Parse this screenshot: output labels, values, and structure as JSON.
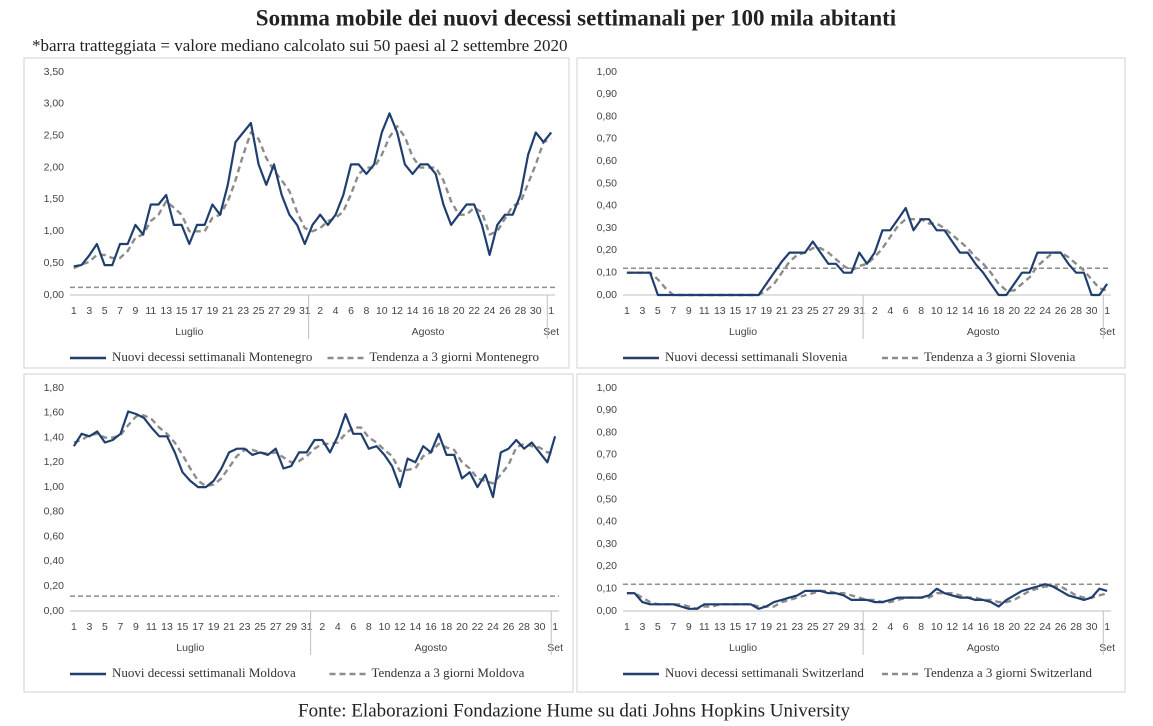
{
  "title": "Somma mobile dei nuovi decessi settimanali per 100 mila abitanti",
  "subtitle": "*barra tratteggiata = valore mediano calcolato sui 50 paesi al 2 settembre 2020",
  "source": "Fonte: Elaborazioni Fondazione Hume su dati Johns Hopkins University",
  "x_axis": {
    "groups": [
      {
        "label": "Luglio",
        "categories": [
          "1",
          null,
          "3",
          null,
          "5",
          null,
          "7",
          null,
          "9",
          null,
          "11",
          null,
          "13",
          null,
          "15",
          null,
          "17",
          null,
          "19",
          null,
          "21",
          null,
          "23",
          null,
          "25",
          null,
          "27",
          null,
          "29",
          null,
          "31"
        ]
      },
      {
        "label": "Agosto",
        "categories": [
          null,
          "2",
          null,
          "4",
          null,
          "6",
          null,
          "8",
          null,
          "10",
          null,
          "12",
          null,
          "14",
          null,
          "16",
          null,
          "18",
          null,
          "20",
          null,
          "22",
          null,
          "24",
          null,
          "26",
          null,
          "28",
          null,
          "30",
          null
        ]
      },
      {
        "label": "Set",
        "categories": [
          "1"
        ]
      }
    ]
  },
  "chart_data": [
    {
      "type": "line",
      "ylim": [
        0,
        3.5
      ],
      "yticks": [
        {
          "value": 0,
          "label": "0,00"
        },
        {
          "value": 0.5,
          "label": "0,50"
        },
        {
          "value": 1,
          "label": "1,00"
        },
        {
          "value": 1.5,
          "label": "1,50"
        },
        {
          "value": 2,
          "label": "2,00"
        },
        {
          "value": 2.5,
          "label": "2,50"
        },
        {
          "value": 3,
          "label": "3,00"
        },
        {
          "value": 3.5,
          "label": "3,50"
        }
      ],
      "reference_line": {
        "value": 0.12,
        "color": "#8c8c8c"
      },
      "series": [
        {
          "name": "Nuovi decessi settimanali Montenegro",
          "color": "#203f6e",
          "style": "solid",
          "values": [
            0.45,
            0.47,
            0.62,
            0.8,
            0.47,
            0.47,
            0.8,
            0.8,
            1.1,
            0.95,
            1.42,
            1.42,
            1.57,
            1.1,
            1.1,
            0.8,
            1.1,
            1.1,
            1.42,
            1.26,
            1.73,
            2.4,
            2.55,
            2.7,
            2.05,
            1.73,
            2.05,
            1.57,
            1.26,
            1.1,
            0.8,
            1.1,
            1.26,
            1.1,
            1.26,
            1.57,
            2.05,
            2.05,
            1.9,
            2.05,
            2.55,
            2.85,
            2.55,
            2.05,
            1.9,
            2.05,
            2.05,
            1.9,
            1.42,
            1.1,
            1.26,
            1.42,
            1.42,
            1.1,
            0.63,
            1.1,
            1.26,
            1.26,
            1.57,
            2.2,
            2.55,
            2.4,
            2.55
          ]
        },
        {
          "name": "Tendenza a 3 giorni Montenegro",
          "color": "#8c8c8c",
          "style": "dashed",
          "values": [
            0.42,
            0.48,
            0.52,
            0.63,
            0.63,
            0.58,
            0.58,
            0.69,
            0.9,
            0.95,
            1.16,
            1.26,
            1.47,
            1.37,
            1.26,
            1.0,
            1.0,
            1.0,
            1.21,
            1.26,
            1.47,
            1.8,
            2.2,
            2.55,
            2.45,
            2.15,
            1.95,
            1.8,
            1.63,
            1.3,
            1.05,
            1.0,
            1.05,
            1.16,
            1.21,
            1.31,
            1.58,
            1.9,
            2.0,
            2.0,
            2.2,
            2.48,
            2.65,
            2.48,
            2.17,
            2.0,
            2.0,
            2.0,
            1.8,
            1.47,
            1.26,
            1.26,
            1.37,
            1.3,
            0.95,
            1.0,
            1.2,
            1.4,
            1.45,
            1.75,
            2.05,
            2.4,
            2.45
          ]
        }
      ]
    },
    {
      "type": "line",
      "ylim": [
        0,
        1
      ],
      "yticks": [
        {
          "value": 0,
          "label": "0,00"
        },
        {
          "value": 0.1,
          "label": "0,10"
        },
        {
          "value": 0.2,
          "label": "0,20"
        },
        {
          "value": 0.3,
          "label": "0,30"
        },
        {
          "value": 0.4,
          "label": "0,40"
        },
        {
          "value": 0.5,
          "label": "0,50"
        },
        {
          "value": 0.6,
          "label": "0,60"
        },
        {
          "value": 0.7,
          "label": "0,70"
        },
        {
          "value": 0.8,
          "label": "0,80"
        },
        {
          "value": 0.9,
          "label": "0,90"
        },
        {
          "value": 1,
          "label": "1,00"
        }
      ],
      "reference_line": {
        "value": 0.12,
        "color": "#8c8c8c"
      },
      "series": [
        {
          "name": "Nuovi decessi settimanali Slovenia",
          "color": "#203f6e",
          "style": "solid",
          "values": [
            0.1,
            0.1,
            0.1,
            0.1,
            0,
            0,
            0,
            0,
            0,
            0,
            0,
            0,
            0,
            0,
            0,
            0,
            0,
            0,
            0.05,
            0.1,
            0.15,
            0.19,
            0.19,
            0.19,
            0.24,
            0.19,
            0.14,
            0.14,
            0.1,
            0.1,
            0.19,
            0.14,
            0.19,
            0.29,
            0.29,
            0.34,
            0.39,
            0.29,
            0.34,
            0.34,
            0.29,
            0.29,
            0.24,
            0.19,
            0.19,
            0.14,
            0.1,
            0.05,
            0,
            0,
            0.05,
            0.1,
            0.1,
            0.19,
            0.19,
            0.19,
            0.19,
            0.14,
            0.1,
            0.1,
            0,
            0,
            0.05
          ]
        },
        {
          "name": "Tendenza a 3 giorni Slovenia",
          "color": "#8c8c8c",
          "style": "dashed",
          "values": [
            0.1,
            0.1,
            0.1,
            0.1,
            0.07,
            0.03,
            0,
            0,
            0,
            0,
            0,
            0,
            0,
            0,
            0,
            0,
            0,
            0,
            0.02,
            0.05,
            0.1,
            0.15,
            0.18,
            0.19,
            0.21,
            0.21,
            0.19,
            0.16,
            0.13,
            0.11,
            0.13,
            0.14,
            0.17,
            0.21,
            0.26,
            0.31,
            0.34,
            0.34,
            0.34,
            0.32,
            0.32,
            0.3,
            0.27,
            0.24,
            0.21,
            0.17,
            0.14,
            0.1,
            0.05,
            0.02,
            0.02,
            0.05,
            0.08,
            0.13,
            0.16,
            0.19,
            0.19,
            0.17,
            0.14,
            0.11,
            0.07,
            0.03,
            0.02
          ]
        }
      ]
    },
    {
      "type": "line",
      "ylim": [
        0,
        1.8
      ],
      "yticks": [
        {
          "value": 0,
          "label": "0,00"
        },
        {
          "value": 0.2,
          "label": "0,20"
        },
        {
          "value": 0.4,
          "label": "0,40"
        },
        {
          "value": 0.6,
          "label": "0,60"
        },
        {
          "value": 0.8,
          "label": "0,80"
        },
        {
          "value": 1,
          "label": "1,00"
        },
        {
          "value": 1.2,
          "label": "1,20"
        },
        {
          "value": 1.4,
          "label": "1,40"
        },
        {
          "value": 1.6,
          "label": "1,60"
        },
        {
          "value": 1.8,
          "label": "1,80"
        }
      ],
      "reference_line": {
        "value": 0.12,
        "color": "#8c8c8c"
      },
      "series": [
        {
          "name": "Nuovi decessi settimanali Moldova",
          "color": "#203f6e",
          "style": "solid",
          "values": [
            1.33,
            1.43,
            1.41,
            1.45,
            1.36,
            1.38,
            1.43,
            1.61,
            1.59,
            1.56,
            1.48,
            1.41,
            1.41,
            1.28,
            1.12,
            1.05,
            1.0,
            1.0,
            1.05,
            1.15,
            1.28,
            1.31,
            1.31,
            1.26,
            1.28,
            1.26,
            1.31,
            1.15,
            1.17,
            1.28,
            1.28,
            1.38,
            1.38,
            1.28,
            1.41,
            1.59,
            1.43,
            1.43,
            1.31,
            1.33,
            1.26,
            1.17,
            1.0,
            1.23,
            1.2,
            1.33,
            1.28,
            1.43,
            1.26,
            1.26,
            1.07,
            1.12,
            1.0,
            1.1,
            0.92,
            1.28,
            1.31,
            1.38,
            1.31,
            1.36,
            1.28,
            1.2,
            1.41
          ]
        },
        {
          "name": "Tendenza a 3 giorni Moldova",
          "color": "#8c8c8c",
          "style": "dashed",
          "values": [
            1.36,
            1.38,
            1.42,
            1.43,
            1.4,
            1.4,
            1.42,
            1.5,
            1.57,
            1.58,
            1.55,
            1.48,
            1.43,
            1.36,
            1.26,
            1.15,
            1.05,
            1.01,
            1.02,
            1.07,
            1.16,
            1.25,
            1.3,
            1.3,
            1.28,
            1.27,
            1.28,
            1.24,
            1.2,
            1.21,
            1.25,
            1.31,
            1.35,
            1.35,
            1.36,
            1.43,
            1.48,
            1.48,
            1.4,
            1.36,
            1.3,
            1.25,
            1.13,
            1.14,
            1.15,
            1.25,
            1.28,
            1.35,
            1.32,
            1.3,
            1.2,
            1.15,
            1.07,
            1.05,
            1.03,
            1.1,
            1.18,
            1.32,
            1.35,
            1.33,
            1.32,
            1.28,
            1.28
          ]
        }
      ]
    },
    {
      "type": "line",
      "ylim": [
        0,
        1
      ],
      "yticks": [
        {
          "value": 0,
          "label": "0,00"
        },
        {
          "value": 0.1,
          "label": "0,10"
        },
        {
          "value": 0.2,
          "label": "0,20"
        },
        {
          "value": 0.3,
          "label": "0,30"
        },
        {
          "value": 0.4,
          "label": "0,40"
        },
        {
          "value": 0.5,
          "label": "0,50"
        },
        {
          "value": 0.6,
          "label": "0,60"
        },
        {
          "value": 0.7,
          "label": "0,70"
        },
        {
          "value": 0.8,
          "label": "0,80"
        },
        {
          "value": 0.9,
          "label": "0,90"
        },
        {
          "value": 1,
          "label": "1,00"
        }
      ],
      "reference_line": {
        "value": 0.12,
        "color": "#8c8c8c"
      },
      "series": [
        {
          "name": "Nuovi decessi settimanali Switzerland",
          "color": "#203f6e",
          "style": "solid",
          "values": [
            0.08,
            0.08,
            0.04,
            0.03,
            0.03,
            0.03,
            0.03,
            0.02,
            0.01,
            0.01,
            0.03,
            0.03,
            0.03,
            0.03,
            0.03,
            0.03,
            0.03,
            0.01,
            0.02,
            0.04,
            0.05,
            0.06,
            0.07,
            0.09,
            0.09,
            0.09,
            0.08,
            0.08,
            0.07,
            0.05,
            0.05,
            0.05,
            0.04,
            0.04,
            0.05,
            0.06,
            0.06,
            0.06,
            0.06,
            0.07,
            0.1,
            0.08,
            0.07,
            0.06,
            0.06,
            0.05,
            0.05,
            0.04,
            0.02,
            0.05,
            0.07,
            0.09,
            0.1,
            0.11,
            0.12,
            0.11,
            0.09,
            0.07,
            0.06,
            0.05,
            0.06,
            0.1,
            0.09
          ]
        },
        {
          "name": "Tendenza a 3 giorni Switzerland",
          "color": "#8c8c8c",
          "style": "dashed",
          "values": [
            0.08,
            0.08,
            0.06,
            0.04,
            0.03,
            0.03,
            0.03,
            0.03,
            0.02,
            0.01,
            0.02,
            0.02,
            0.03,
            0.03,
            0.03,
            0.03,
            0.03,
            0.02,
            0.02,
            0.02,
            0.04,
            0.05,
            0.06,
            0.07,
            0.08,
            0.09,
            0.09,
            0.08,
            0.08,
            0.07,
            0.06,
            0.05,
            0.05,
            0.04,
            0.04,
            0.05,
            0.06,
            0.06,
            0.06,
            0.06,
            0.08,
            0.08,
            0.08,
            0.07,
            0.06,
            0.06,
            0.05,
            0.05,
            0.04,
            0.04,
            0.05,
            0.07,
            0.09,
            0.1,
            0.11,
            0.11,
            0.11,
            0.09,
            0.07,
            0.06,
            0.06,
            0.07,
            0.08
          ]
        }
      ]
    }
  ]
}
